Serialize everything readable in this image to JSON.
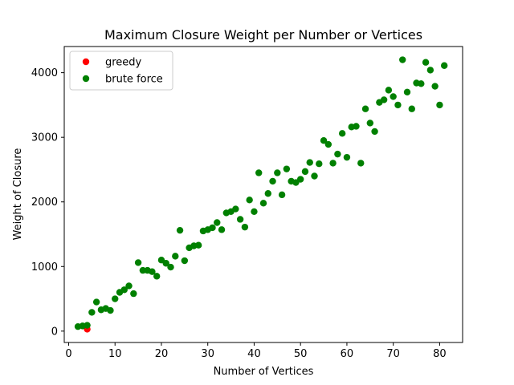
{
  "chart_data": {
    "type": "scatter",
    "title": "Maximum Closure Weight per Number or Vertices",
    "xlabel": "Number of Vertices",
    "ylabel": "Weight of Closure",
    "xlim": [
      -0.95,
      84.95
    ],
    "ylim": [
      -176,
      4405
    ],
    "xticks": [
      0,
      10,
      20,
      30,
      40,
      50,
      60,
      70,
      80
    ],
    "yticks": [
      0,
      1000,
      2000,
      3000,
      4000
    ],
    "grid": false,
    "legend_position": "top-left",
    "series": [
      {
        "name": "greedy",
        "color": "#ff0000",
        "x": [
          4
        ],
        "y": [
          30
        ]
      },
      {
        "name": "brute force",
        "color": "#008000",
        "x": [
          2,
          3,
          4,
          5,
          6,
          7,
          8,
          9,
          10,
          11,
          12,
          13,
          14,
          15,
          16,
          17,
          18,
          19,
          20,
          21,
          22,
          23,
          24,
          25,
          26,
          27,
          28,
          29,
          30,
          31,
          32,
          33,
          34,
          35,
          36,
          37,
          38,
          39,
          40,
          41,
          42,
          43,
          44,
          45,
          46,
          47,
          48,
          49,
          50,
          51,
          52,
          53,
          54,
          55,
          56,
          57,
          58,
          59,
          60,
          61,
          62,
          63,
          64,
          65,
          66,
          67,
          68,
          69,
          70,
          71,
          72,
          73,
          74,
          75,
          76,
          77,
          78,
          79,
          80,
          81
        ],
        "y": [
          70,
          80,
          90,
          290,
          450,
          330,
          350,
          320,
          500,
          600,
          640,
          700,
          580,
          1060,
          940,
          940,
          920,
          850,
          1100,
          1050,
          990,
          1160,
          1560,
          1090,
          1290,
          1320,
          1330,
          1550,
          1570,
          1600,
          1680,
          1570,
          1830,
          1850,
          1890,
          1730,
          1610,
          2030,
          1850,
          2450,
          1980,
          2130,
          2320,
          2450,
          2110,
          2510,
          2320,
          2300,
          2350,
          2470,
          2610,
          2400,
          2590,
          2950,
          2890,
          2600,
          2740,
          3060,
          2690,
          3160,
          3170,
          2600,
          3440,
          3220,
          3090,
          3540,
          3580,
          3730,
          3630,
          3500,
          4200,
          3700,
          3440,
          3840,
          3830,
          4160,
          4040,
          3790,
          3500,
          4110
        ]
      }
    ]
  }
}
